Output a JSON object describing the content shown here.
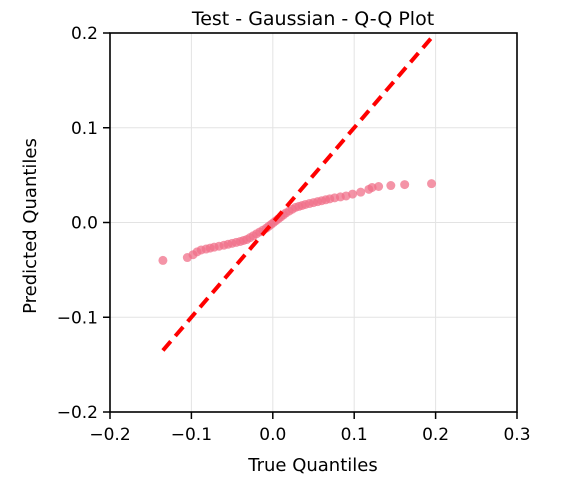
{
  "chart_data": {
    "type": "scatter",
    "title": "Test - Gaussian - Q-Q Plot",
    "xlabel": "True Quantiles",
    "ylabel": "Predicted Quantiles",
    "xlim": [
      -0.2,
      0.3
    ],
    "ylim": [
      -0.2,
      0.2
    ],
    "xticks": [
      -0.2,
      -0.1,
      0.0,
      0.1,
      0.2,
      0.3
    ],
    "yticks": [
      -0.2,
      -0.1,
      0.0,
      0.1,
      0.2
    ],
    "xtick_labels": [
      "−0.2",
      "−0.1",
      "0.0",
      "0.1",
      "0.2",
      "0.3"
    ],
    "ytick_labels": [
      "−0.2",
      "−0.1",
      "0.0",
      "0.1",
      "0.2"
    ],
    "grid": true,
    "point_color": "#f0708a",
    "reference_line": {
      "style": "dashed",
      "color": "#ff0000",
      "from": [
        -0.135,
        -0.135
      ],
      "to": [
        0.195,
        0.195
      ]
    },
    "points": [
      [
        -0.135,
        -0.04
      ],
      [
        -0.105,
        -0.037
      ],
      [
        -0.098,
        -0.034
      ],
      [
        -0.093,
        -0.031
      ],
      [
        -0.088,
        -0.029
      ],
      [
        -0.082,
        -0.028
      ],
      [
        -0.077,
        -0.027
      ],
      [
        -0.072,
        -0.026
      ],
      [
        -0.066,
        -0.025
      ],
      [
        -0.06,
        -0.024
      ],
      [
        -0.055,
        -0.023
      ],
      [
        -0.05,
        -0.022
      ],
      [
        -0.045,
        -0.021
      ],
      [
        -0.04,
        -0.02
      ],
      [
        -0.036,
        -0.019
      ],
      [
        -0.032,
        -0.018
      ],
      [
        -0.028,
        -0.016
      ],
      [
        -0.024,
        -0.014
      ],
      [
        -0.02,
        -0.012
      ],
      [
        -0.016,
        -0.01
      ],
      [
        -0.012,
        -0.008
      ],
      [
        -0.008,
        -0.006
      ],
      [
        -0.005,
        -0.004
      ],
      [
        -0.002,
        -0.002
      ],
      [
        0.001,
        0.0
      ],
      [
        0.004,
        0.002
      ],
      [
        0.007,
        0.004
      ],
      [
        0.01,
        0.006
      ],
      [
        0.013,
        0.008
      ],
      [
        0.016,
        0.01
      ],
      [
        0.02,
        0.012
      ],
      [
        0.024,
        0.014
      ],
      [
        0.028,
        0.016
      ],
      [
        0.032,
        0.017
      ],
      [
        0.036,
        0.018
      ],
      [
        0.04,
        0.019
      ],
      [
        0.045,
        0.02
      ],
      [
        0.05,
        0.021
      ],
      [
        0.055,
        0.022
      ],
      [
        0.06,
        0.023
      ],
      [
        0.065,
        0.024
      ],
      [
        0.07,
        0.025
      ],
      [
        0.076,
        0.026
      ],
      [
        0.083,
        0.027
      ],
      [
        0.09,
        0.028
      ],
      [
        0.098,
        0.03
      ],
      [
        0.108,
        0.032
      ],
      [
        0.118,
        0.035
      ],
      [
        0.122,
        0.037
      ],
      [
        0.13,
        0.038
      ],
      [
        0.145,
        0.039
      ],
      [
        0.162,
        0.04
      ],
      [
        0.195,
        0.041
      ]
    ]
  }
}
